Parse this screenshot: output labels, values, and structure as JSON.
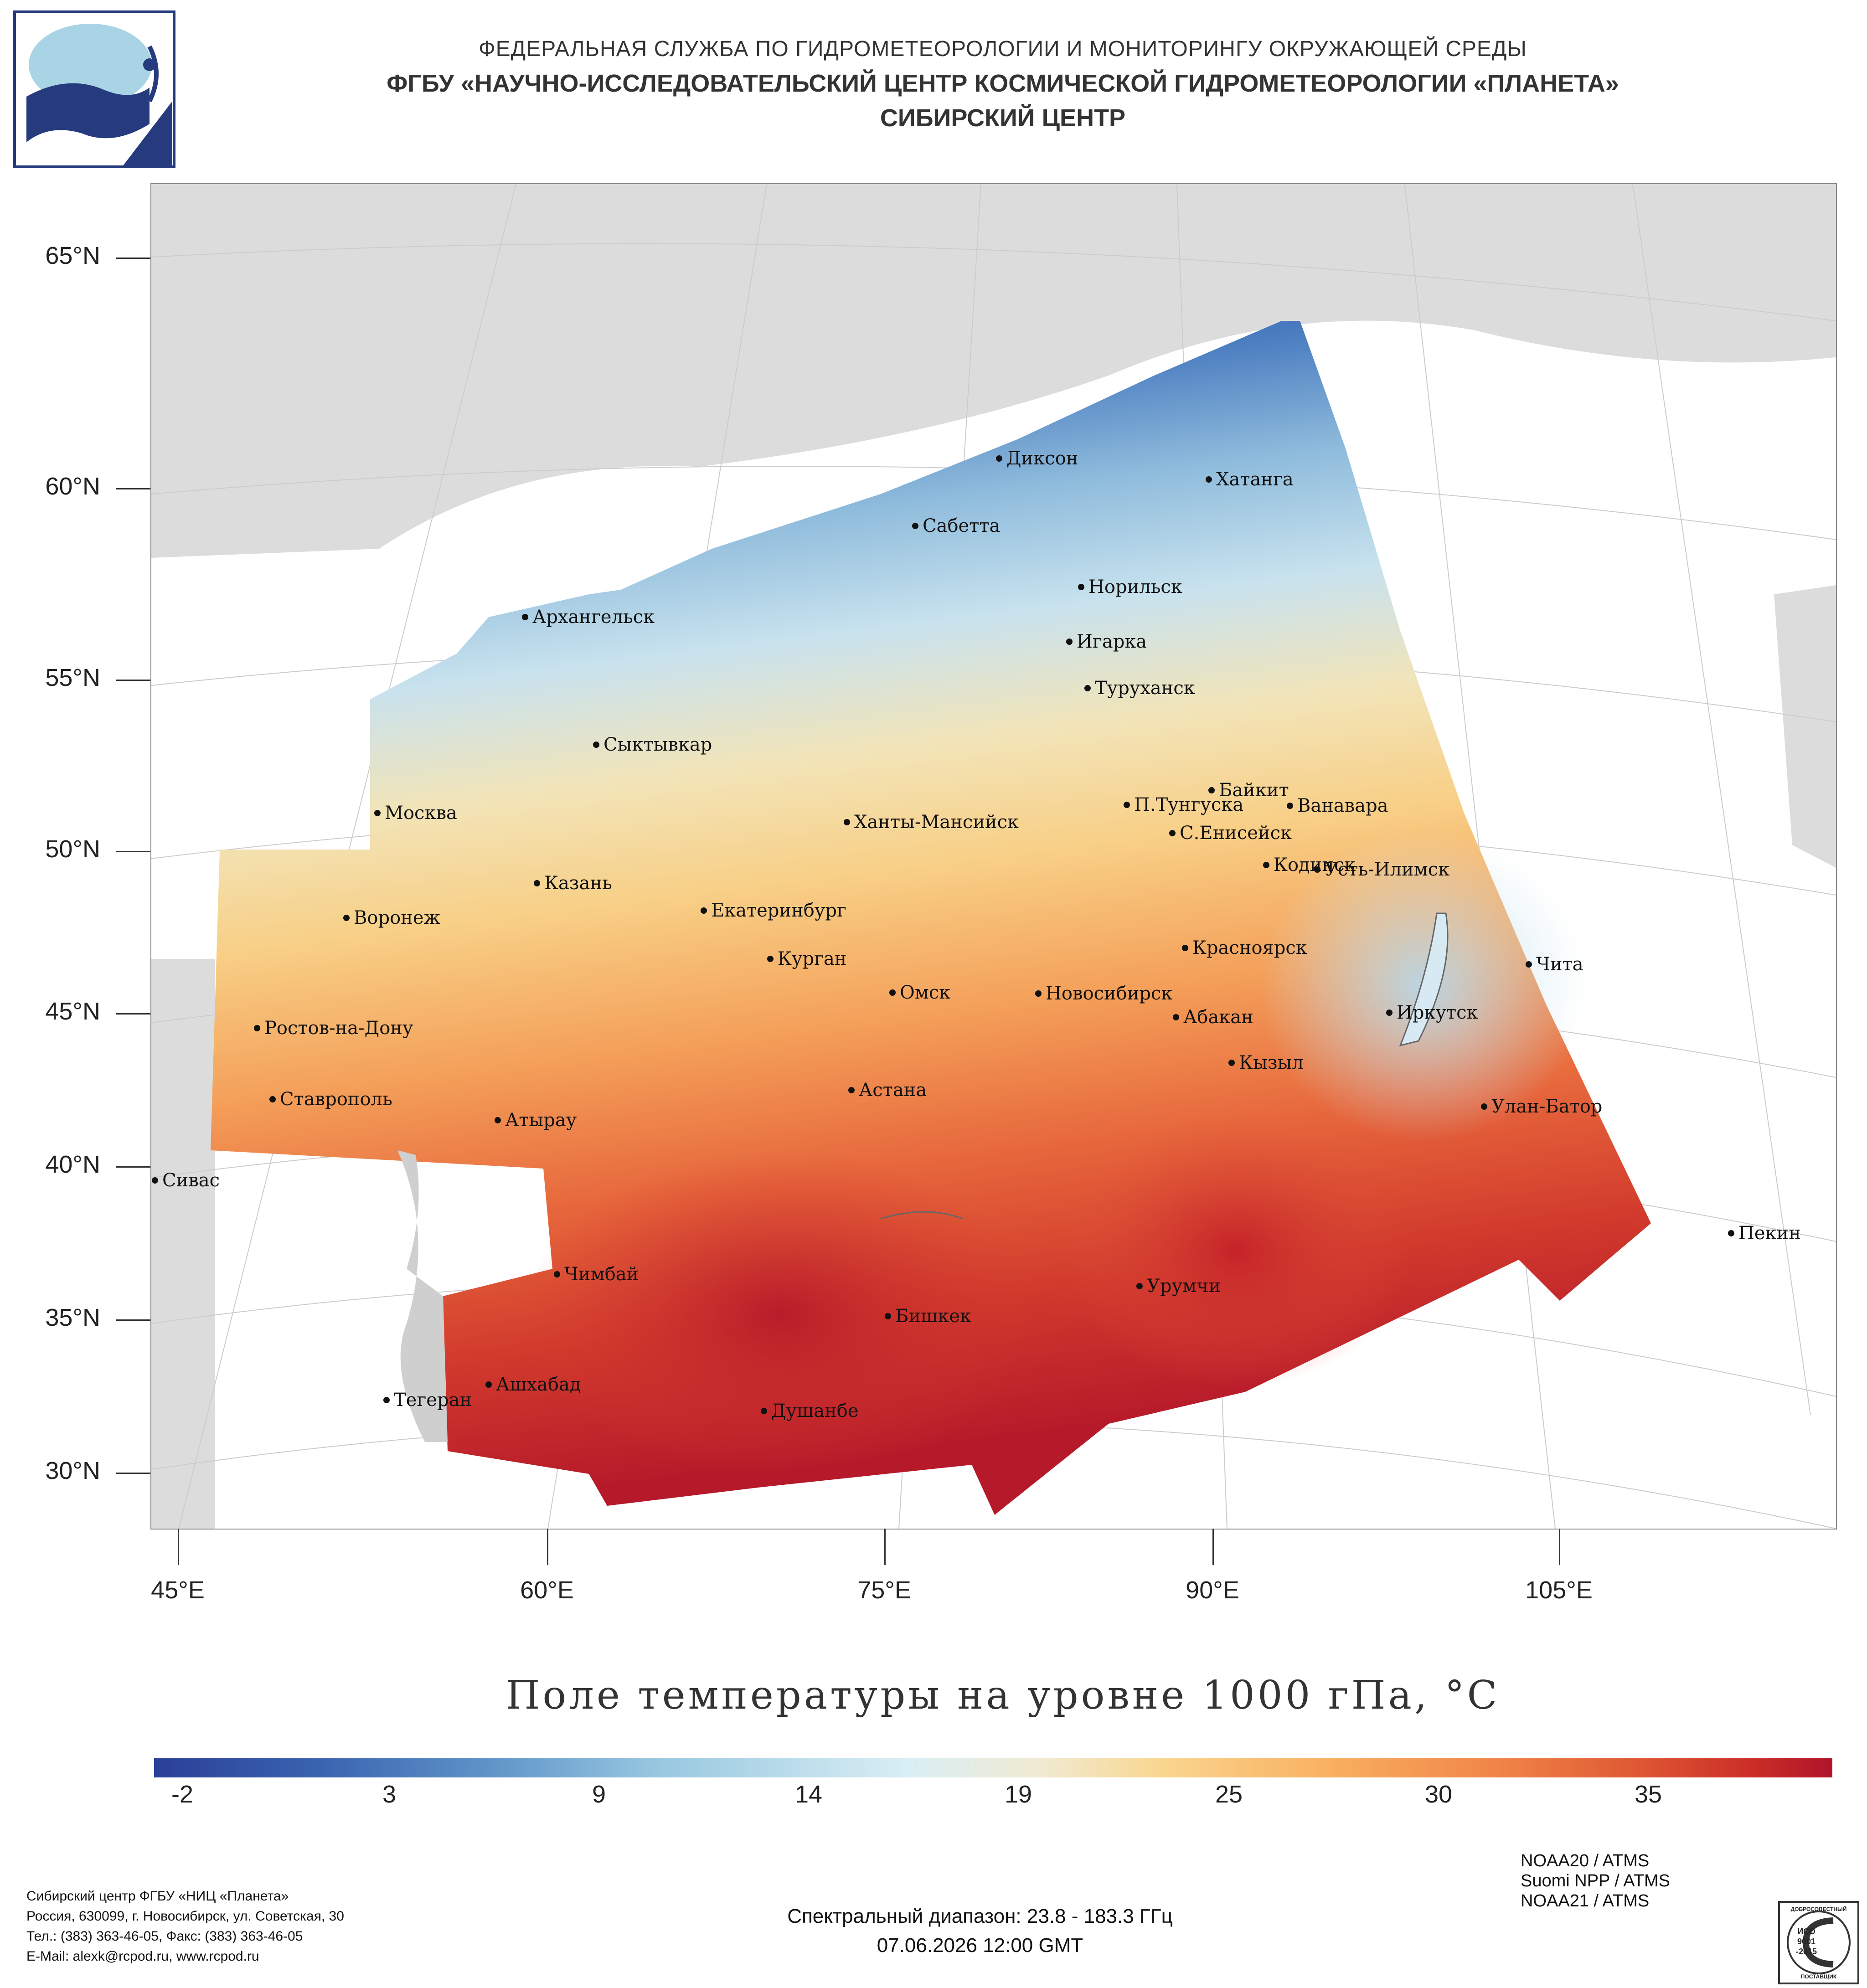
{
  "header": {
    "line1": "ФЕДЕРАЛЬНАЯ СЛУЖБА ПО ГИДРОМЕТЕОРОЛОГИИ И МОНИТОРИНГУ ОКРУЖАЮЩЕЙ СРЕДЫ",
    "line2": "ФГБУ «НАУЧНО-ИССЛЕДОВАТЕЛЬСКИЙ ЦЕНТР КОСМИЧЕСКОЙ ГИДРОМЕТЕОРОЛОГИИ «ПЛАНЕТА»",
    "line3": "СИБИРСКИЙ ЦЕНТР"
  },
  "map": {
    "lat_labels": [
      "65°N",
      "60°N",
      "55°N",
      "50°N",
      "45°N",
      "40°N",
      "35°N",
      "30°N"
    ],
    "lon_labels": [
      "45°E",
      "60°E",
      "75°E",
      "90°E",
      "105°E"
    ],
    "cities": [
      {
        "name": "Диксон"
      },
      {
        "name": "Хатанга"
      },
      {
        "name": "Сабетта"
      },
      {
        "name": "Норильск"
      },
      {
        "name": "Архангельск"
      },
      {
        "name": "Игарка"
      },
      {
        "name": "Туруханск"
      },
      {
        "name": "Сыктывкар"
      },
      {
        "name": "Байкит"
      },
      {
        "name": "П.Тунгуска"
      },
      {
        "name": "Ванавара"
      },
      {
        "name": "Москва"
      },
      {
        "name": "Ханты-Мансийск"
      },
      {
        "name": "С.Енисейск"
      },
      {
        "name": "Кодинск"
      },
      {
        "name": "Усть-Илимск"
      },
      {
        "name": "Казань"
      },
      {
        "name": "Екатеринбург"
      },
      {
        "name": "Воронеж"
      },
      {
        "name": "Красноярск"
      },
      {
        "name": "Курган"
      },
      {
        "name": "Чита"
      },
      {
        "name": "Омск"
      },
      {
        "name": "Новосибирск"
      },
      {
        "name": "Иркутск"
      },
      {
        "name": "Абакан"
      },
      {
        "name": "Ростов-на-Дону"
      },
      {
        "name": "Кызыл"
      },
      {
        "name": "Ставрополь"
      },
      {
        "name": "Астана"
      },
      {
        "name": "Улан-Батор"
      },
      {
        "name": "Атырау"
      },
      {
        "name": "Сивас"
      },
      {
        "name": "Пекин"
      },
      {
        "name": "Чимбай"
      },
      {
        "name": "Урумчи"
      },
      {
        "name": "Бишкек"
      },
      {
        "name": "Ашхабад"
      },
      {
        "name": "Тегеран"
      },
      {
        "name": "Душанбе"
      }
    ],
    "title": "Поле температуры на уровне 1000 гПа, °C"
  },
  "colorbar": {
    "labels": [
      "-2",
      "3",
      "9",
      "14",
      "19",
      "25",
      "30",
      "35"
    ],
    "colors": [
      "#2a3f98",
      "#3a64b0",
      "#5f94c8",
      "#98c8e0",
      "#cfe8f0",
      "#f0ead0",
      "#f9d690",
      "#f9b060",
      "#f08548",
      "#e05a34",
      "#cc2f26",
      "#b0142a"
    ]
  },
  "footer": {
    "org_lines": [
      "Сибирский центр ФГБУ «НИЦ «Планета»",
      "Россия, 630099, г. Новосибирск, ул. Советская, 30",
      "Тел.: (383) 363-46-05, Факс: (383) 363-46-05",
      "E-Mail: alexk@rcpod.ru, www.rcpod.ru"
    ],
    "spectral": "Спектральный диапазон: 23.8 - 183.3 ГГц",
    "datetime": "07.06.2026 12:00 GMT",
    "sensors": [
      "NOAA20 / ATMS",
      "Suomi NPP / ATMS",
      "NOAA21 / ATMS"
    ],
    "iso_badge": {
      "top": "ДОБРОСОВЕСТНЫЙ",
      "mid1": "ИСО",
      "mid2": "9001",
      "mid3": "-2015",
      "bottom": "ПОСТАВЩИК"
    }
  }
}
